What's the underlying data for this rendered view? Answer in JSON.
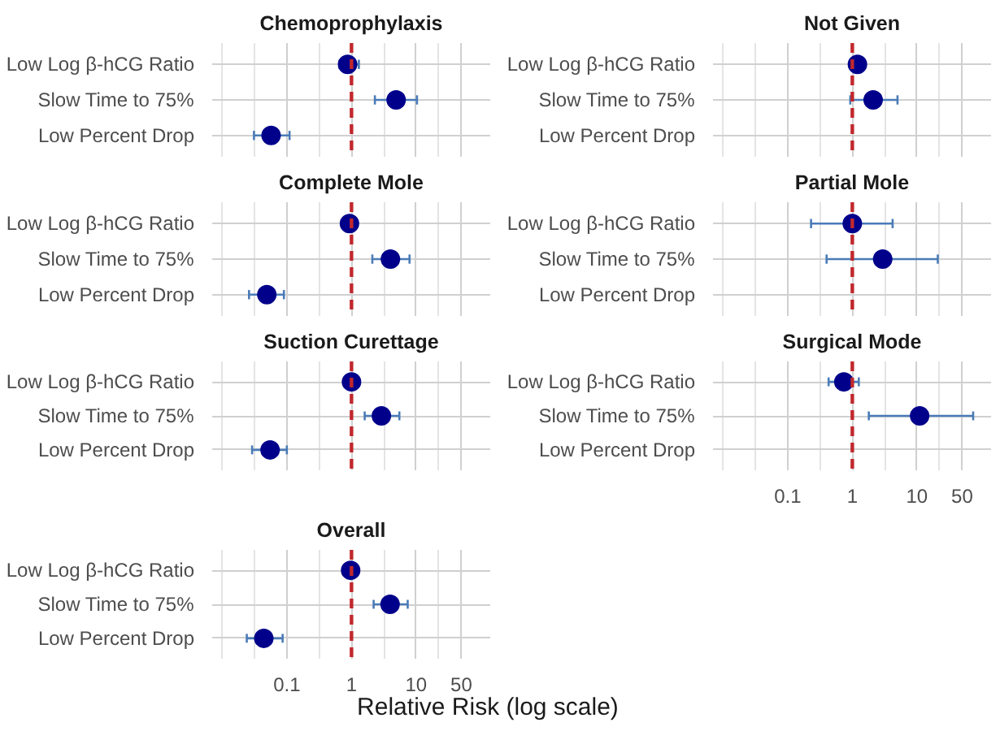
{
  "chart_data": [
    {
      "type": "scatter",
      "orientation": "horizontal",
      "title": "Chemoprophylaxis",
      "categories": [
        "Low Log β-hCG Ratio",
        "Slow Time to 75%",
        "Low Percent Drop"
      ],
      "series": [
        {
          "color": "#00008b",
          "values": [
            0.87,
            4.9,
            0.057
          ],
          "errors": [
            [
              0.65,
              1.3
            ],
            [
              2.3,
              10.3
            ],
            [
              0.031,
              0.11
            ]
          ]
        }
      ],
      "log": "x",
      "xlim": [
        0.007,
        140
      ],
      "xticks": [
        0.1,
        1,
        10,
        50
      ],
      "ref_lines": [
        {
          "axis": "x",
          "value": 1,
          "color": "#c0282d",
          "line_style": "dashed"
        }
      ],
      "grid": true,
      "marker": "circle",
      "tick_labels": "y"
    },
    {
      "type": "scatter",
      "orientation": "horizontal",
      "title": "Not Given",
      "categories": [
        "Low Log β-hCG Ratio",
        "Slow Time to 75%",
        "Low Percent Drop"
      ],
      "series": [
        {
          "color": "#00008b",
          "values": [
            1.2,
            2.1,
            null
          ],
          "errors": [
            [
              0.95,
              1.5
            ],
            [
              0.93,
              5.0
            ],
            null
          ]
        }
      ],
      "log": "x",
      "xlim": [
        0.007,
        140
      ],
      "xticks": [
        0.1,
        1,
        10,
        50
      ],
      "ref_lines": [
        {
          "axis": "x",
          "value": 1,
          "color": "#c0282d",
          "line_style": "dashed"
        }
      ],
      "grid": true,
      "marker": "circle",
      "tick_labels": "y"
    },
    {
      "type": "scatter",
      "orientation": "horizontal",
      "title": "Complete Mole",
      "categories": [
        "Low Log β-hCG Ratio",
        "Slow Time to 75%",
        "Low Percent Drop"
      ],
      "series": [
        {
          "color": "#00008b",
          "values": [
            0.93,
            4.0,
            0.049
          ],
          "errors": [
            null,
            [
              2.1,
              7.9
            ],
            [
              0.026,
              0.09
            ]
          ]
        }
      ],
      "log": "x",
      "xlim": [
        0.007,
        140
      ],
      "xticks": [
        0.1,
        1,
        10,
        50
      ],
      "ref_lines": [
        {
          "axis": "x",
          "value": 1,
          "color": "#c0282d",
          "line_style": "dashed"
        }
      ],
      "grid": true,
      "marker": "circle",
      "tick_labels": "y"
    },
    {
      "type": "scatter",
      "orientation": "horizontal",
      "title": "Partial Mole",
      "categories": [
        "Low Log β-hCG Ratio",
        "Slow Time to 75%",
        "Low Percent Drop"
      ],
      "series": [
        {
          "color": "#00008b",
          "values": [
            1.0,
            2.95,
            null
          ],
          "errors": [
            [
              0.23,
              4.2
            ],
            [
              0.4,
              21
            ],
            null
          ]
        }
      ],
      "log": "x",
      "xlim": [
        0.007,
        140
      ],
      "xticks": [
        0.1,
        1,
        10,
        50
      ],
      "ref_lines": [
        {
          "axis": "x",
          "value": 1,
          "color": "#c0282d",
          "line_style": "dashed"
        }
      ],
      "grid": true,
      "marker": "circle",
      "tick_labels": "y"
    },
    {
      "type": "scatter",
      "orientation": "horizontal",
      "title": "Suction Curettage",
      "categories": [
        "Low Log β-hCG Ratio",
        "Slow Time to 75%",
        "Low Percent Drop"
      ],
      "series": [
        {
          "color": "#00008b",
          "values": [
            1.0,
            2.9,
            0.055
          ],
          "errors": [
            null,
            [
              1.6,
              5.5
            ],
            [
              0.029,
              0.1
            ]
          ]
        }
      ],
      "log": "x",
      "xlim": [
        0.007,
        140
      ],
      "xticks": [
        0.1,
        1,
        10,
        50
      ],
      "ref_lines": [
        {
          "axis": "x",
          "value": 1,
          "color": "#c0282d",
          "line_style": "dashed"
        }
      ],
      "grid": true,
      "marker": "circle",
      "tick_labels": "y"
    },
    {
      "type": "scatter",
      "orientation": "horizontal",
      "title": "Surgical Mode",
      "categories": [
        "Low Log β-hCG Ratio",
        "Slow Time to 75%",
        "Low Percent Drop"
      ],
      "series": [
        {
          "color": "#00008b",
          "values": [
            0.74,
            11,
            null
          ],
          "errors": [
            [
              0.43,
              1.26
            ],
            [
              1.8,
              74
            ],
            null
          ]
        }
      ],
      "log": "x",
      "xlim": [
        0.007,
        140
      ],
      "xticks": [
        0.1,
        1,
        10,
        50
      ],
      "ref_lines": [
        {
          "axis": "x",
          "value": 1,
          "color": "#c0282d",
          "line_style": "dashed"
        }
      ],
      "grid": true,
      "marker": "circle"
    },
    {
      "type": "scatter",
      "orientation": "horizontal",
      "title": "Overall",
      "xlabel": "Relative Risk (log scale)",
      "categories": [
        "Low Log β-hCG Ratio",
        "Slow Time to 75%",
        "Low Percent Drop"
      ],
      "series": [
        {
          "color": "#00008b",
          "values": [
            0.97,
            3.95,
            0.044
          ],
          "errors": [
            null,
            [
              2.2,
              7.4
            ],
            [
              0.024,
              0.086
            ]
          ]
        }
      ],
      "log": "x",
      "xlim": [
        0.007,
        140
      ],
      "xticks": [
        0.1,
        1,
        10,
        50
      ],
      "ref_lines": [
        {
          "axis": "x",
          "value": 1,
          "color": "#c0282d",
          "line_style": "dashed"
        }
      ],
      "grid": true,
      "marker": "circle"
    }
  ]
}
